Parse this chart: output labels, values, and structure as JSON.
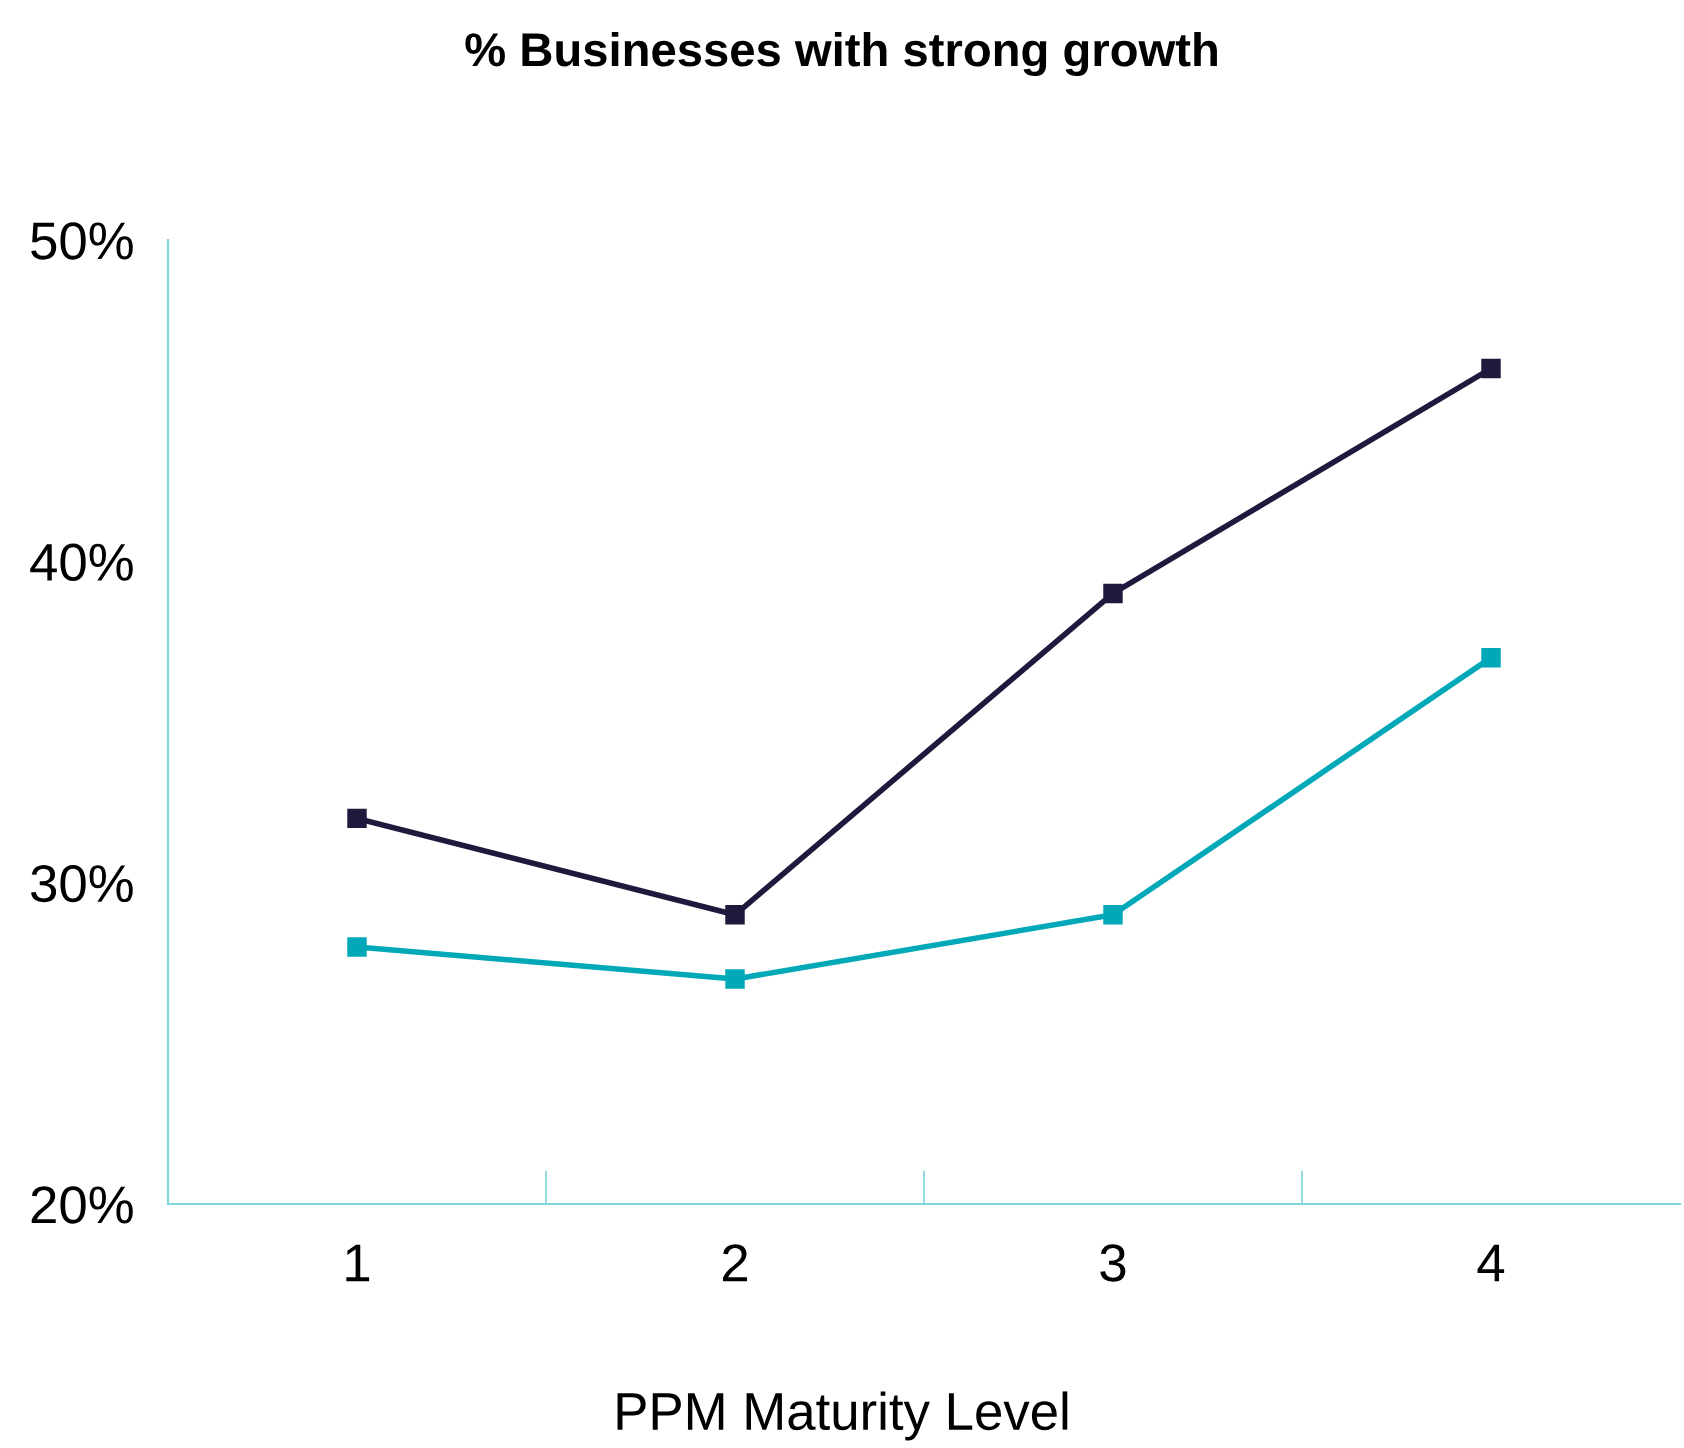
{
  "chart_data": {
    "type": "line",
    "title": "% Businesses with strong growth",
    "xlabel": "PPM Maturity Level",
    "categories": [
      "1",
      "2",
      "3",
      "4"
    ],
    "series": [
      {
        "color": "#1f1a3d",
        "values": [
          32,
          29,
          39,
          46
        ]
      },
      {
        "color": "#00a8b8",
        "values": [
          28,
          27,
          29,
          37
        ]
      }
    ],
    "ylim": [
      20,
      50
    ],
    "yticks": [
      {
        "value": 20,
        "label": "20%"
      },
      {
        "value": 30,
        "label": "30%"
      },
      {
        "value": 40,
        "label": "40%"
      },
      {
        "value": 50,
        "label": "50%"
      }
    ],
    "grid": false,
    "legend": false,
    "marker": "square",
    "line_style": "solid"
  }
}
